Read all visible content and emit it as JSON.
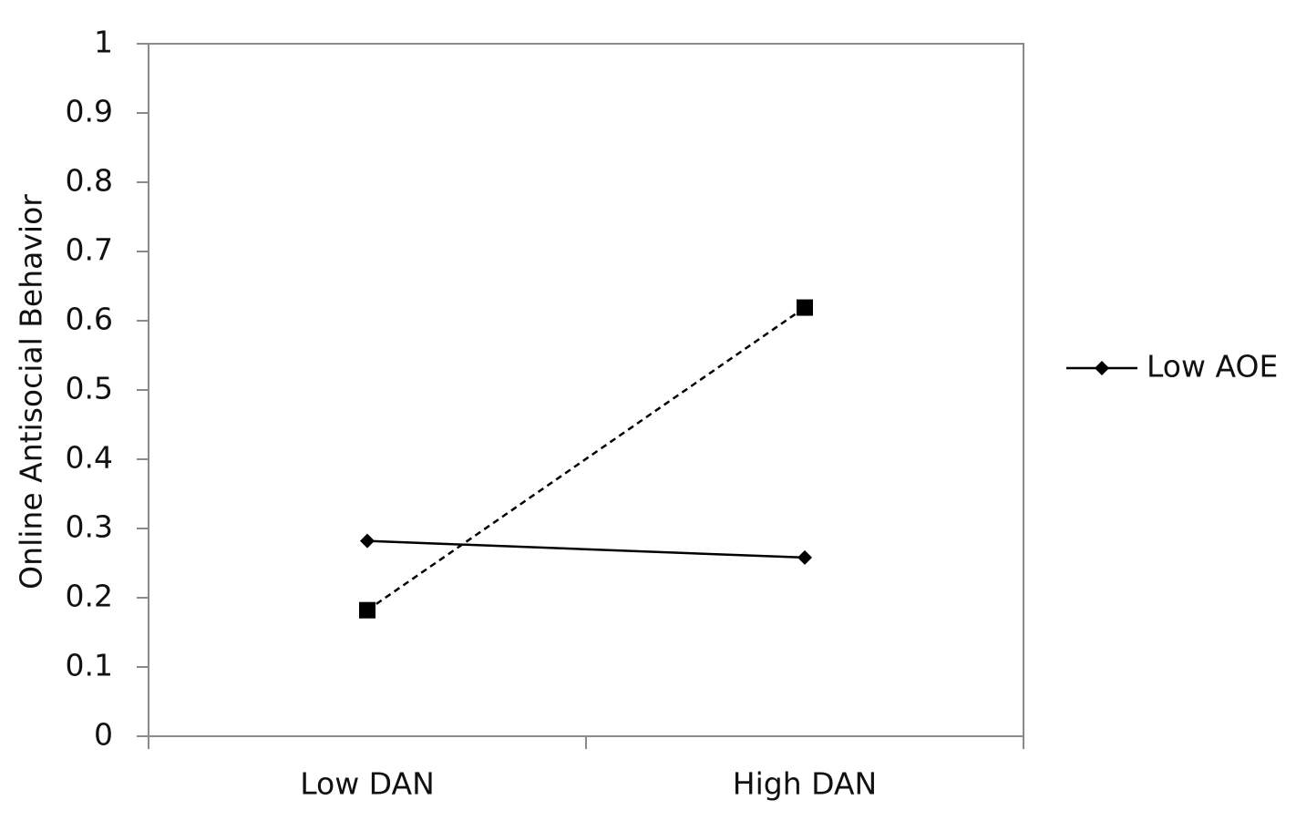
{
  "chart_data": {
    "type": "line",
    "y_label": "Online Antisocial Behavior",
    "categories": [
      "Low DAN",
      "High DAN"
    ],
    "series": [
      {
        "name": "Low AOE",
        "color": "#000000",
        "dash": "solid",
        "marker": "diamond",
        "values": [
          0.282,
          0.258
        ]
      },
      {
        "color": "#000000",
        "dash": "dashed",
        "marker": "square",
        "values": [
          0.182,
          0.619
        ]
      }
    ],
    "ylim": [
      0,
      1
    ],
    "yticks": [
      0,
      0.1,
      0.2,
      0.3,
      0.4,
      0.5,
      0.6,
      0.7,
      0.8,
      0.9,
      1
    ],
    "grid": false,
    "legend": "right"
  }
}
